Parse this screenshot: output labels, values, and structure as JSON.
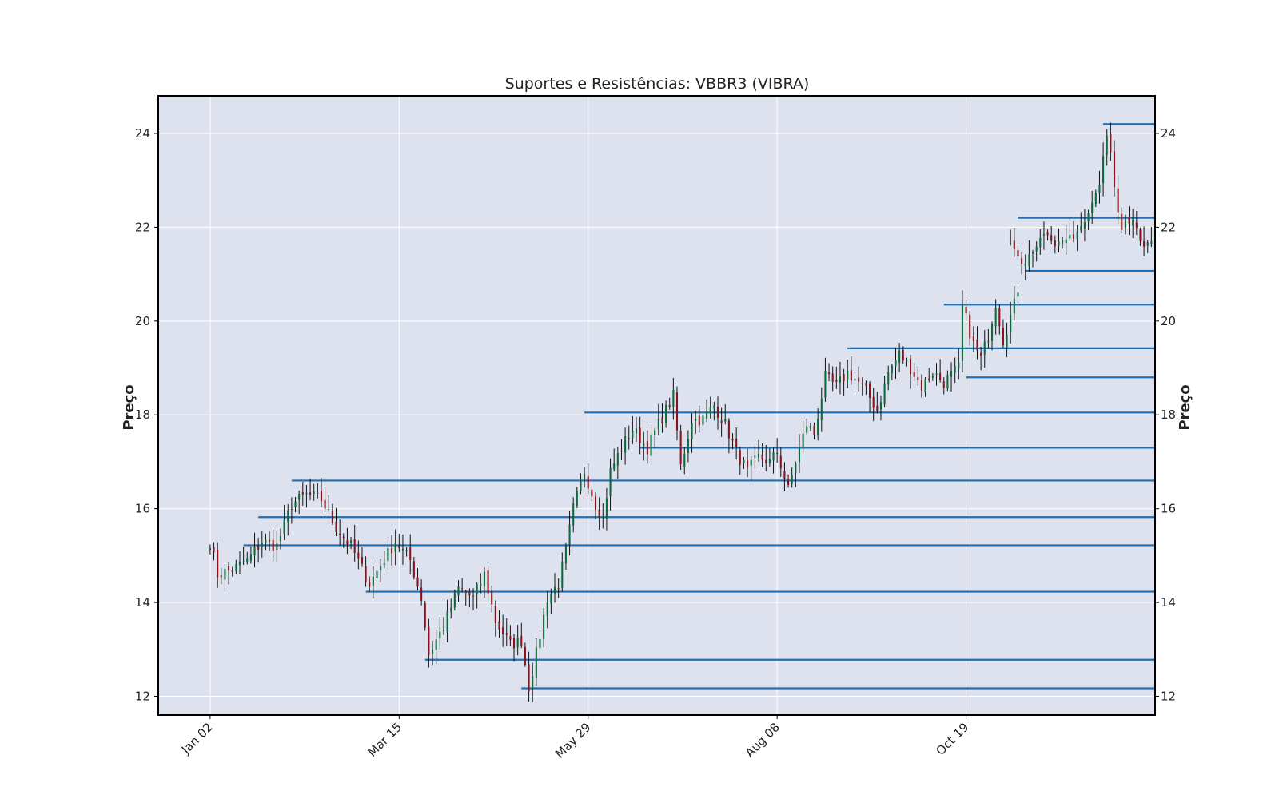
{
  "chart_data": {
    "type": "candlestick",
    "title": "Suportes e Resistências: VBBR3 (VIBRA)",
    "ylabel_left": "Preço",
    "ylabel_right": "Preço",
    "ylim": [
      11.6,
      24.8
    ],
    "yticks": [
      12,
      14,
      16,
      18,
      20,
      22,
      24
    ],
    "xlabels": [
      "Jan 02",
      "Mar 15",
      "May 29",
      "Aug 08",
      "Oct 19"
    ],
    "xlabel_index": [
      0,
      51,
      102,
      153,
      204
    ],
    "index_range": [
      -14,
      255
    ],
    "grid": true,
    "colors": {
      "background": "#dde2ee",
      "up": "#0a6b3a",
      "down": "#8b1219",
      "wick": "#111111",
      "level": "#1f6fb2",
      "grid": "#ffffff",
      "axis": "#000000"
    },
    "anchors": [
      [
        0,
        15.3
      ],
      [
        2,
        14.6
      ],
      [
        6,
        14.7
      ],
      [
        10,
        14.9
      ],
      [
        14,
        15.3
      ],
      [
        18,
        15.2
      ],
      [
        22,
        16.1
      ],
      [
        26,
        16.3
      ],
      [
        30,
        16.2
      ],
      [
        34,
        15.6
      ],
      [
        38,
        15.2
      ],
      [
        43,
        14.4
      ],
      [
        46,
        14.8
      ],
      [
        50,
        15.3
      ],
      [
        54,
        14.9
      ],
      [
        57,
        14.1
      ],
      [
        59,
        12.9
      ],
      [
        63,
        13.5
      ],
      [
        67,
        14.3
      ],
      [
        71,
        14.1
      ],
      [
        74,
        14.6
      ],
      [
        77,
        13.6
      ],
      [
        81,
        13.1
      ],
      [
        84,
        13.2
      ],
      [
        86,
        12.2
      ],
      [
        88,
        12.9
      ],
      [
        91,
        14.1
      ],
      [
        94,
        14.4
      ],
      [
        96,
        15.1
      ],
      [
        98,
        16.0
      ],
      [
        101,
        16.8
      ],
      [
        104,
        16.1
      ],
      [
        106,
        15.8
      ],
      [
        108,
        16.8
      ],
      [
        111,
        17.3
      ],
      [
        114,
        17.7
      ],
      [
        118,
        17.3
      ],
      [
        121,
        17.8
      ],
      [
        125,
        18.4
      ],
      [
        127,
        16.9
      ],
      [
        130,
        17.9
      ],
      [
        133,
        17.9
      ],
      [
        136,
        18.2
      ],
      [
        139,
        17.8
      ],
      [
        142,
        17.2
      ],
      [
        145,
        16.8
      ],
      [
        148,
        17.1
      ],
      [
        151,
        17.0
      ],
      [
        153,
        17.2
      ],
      [
        156,
        16.4
      ],
      [
        158,
        17.0
      ],
      [
        161,
        17.8
      ],
      [
        163,
        17.6
      ],
      [
        166,
        18.8
      ],
      [
        169,
        18.6
      ],
      [
        172,
        18.9
      ],
      [
        175,
        18.7
      ],
      [
        177,
        18.5
      ],
      [
        180,
        18.1
      ],
      [
        183,
        18.9
      ],
      [
        186,
        19.3
      ],
      [
        189,
        19.0
      ],
      [
        192,
        18.6
      ],
      [
        195,
        18.9
      ],
      [
        198,
        18.7
      ],
      [
        202,
        19.0
      ],
      [
        203,
        20.3
      ],
      [
        206,
        19.5
      ],
      [
        208,
        19.2
      ],
      [
        210,
        19.7
      ],
      [
        212,
        20.4
      ],
      [
        214,
        19.6
      ],
      [
        216,
        20.1
      ],
      [
        218,
        20.6
      ],
      [
        216,
        21.8
      ],
      [
        220,
        21.2
      ],
      [
        224,
        21.9
      ],
      [
        228,
        21.5
      ],
      [
        232,
        21.8
      ],
      [
        236,
        22.1
      ],
      [
        240,
        22.9
      ],
      [
        242,
        24.0
      ],
      [
        244,
        23.0
      ],
      [
        246,
        21.9
      ],
      [
        249,
        22.3
      ],
      [
        252,
        21.6
      ],
      [
        255,
        21.7
      ]
    ],
    "levels": [
      {
        "price": 24.2,
        "start": 241
      },
      {
        "price": 22.2,
        "start": 218
      },
      {
        "price": 21.07,
        "start": 220
      },
      {
        "price": 20.35,
        "start": 198
      },
      {
        "price": 19.42,
        "start": 172
      },
      {
        "price": 18.8,
        "start": 204
      },
      {
        "price": 18.05,
        "start": 101
      },
      {
        "price": 17.3,
        "start": 116
      },
      {
        "price": 16.6,
        "start": 22
      },
      {
        "price": 15.82,
        "start": 13
      },
      {
        "price": 15.22,
        "start": 9
      },
      {
        "price": 14.23,
        "start": 42
      },
      {
        "price": 12.78,
        "start": 58
      },
      {
        "price": 12.17,
        "start": 84
      }
    ]
  }
}
